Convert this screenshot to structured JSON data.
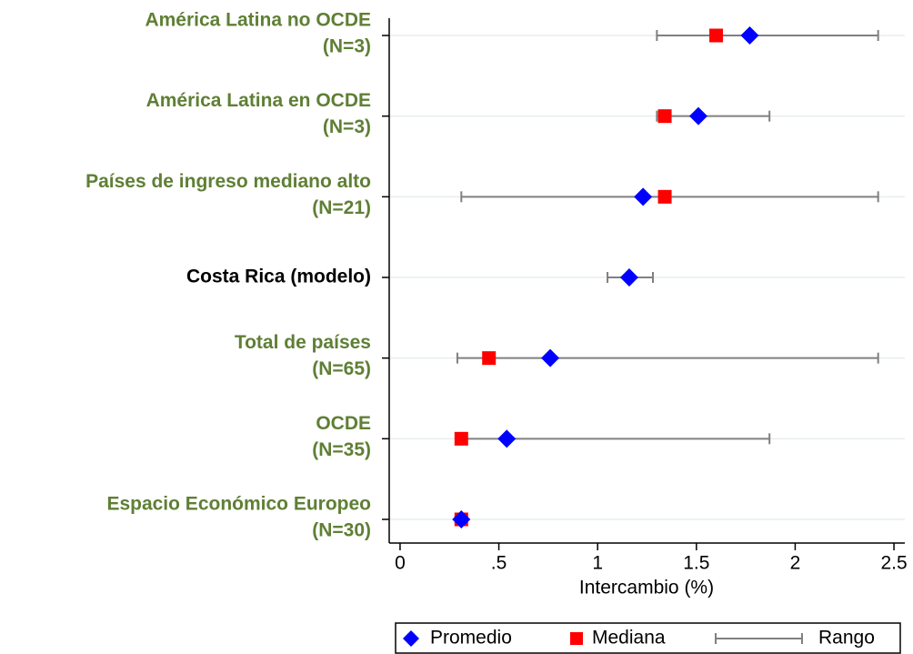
{
  "chart_data": {
    "type": "dot-range",
    "categories": [
      [
        "América Latina no OCDE",
        "(N=3)"
      ],
      [
        "América Latina en OCDE",
        "(N=3)"
      ],
      [
        "Países de ingreso mediano alto",
        "(N=21)"
      ],
      [
        "Costa Rica (modelo)"
      ],
      [
        "Total de países",
        "(N=65)"
      ],
      [
        "OCDE",
        "(N=35)"
      ],
      [
        "Espacio Económico Europeo",
        "(N=30)"
      ]
    ],
    "category_colors": [
      "#5f7f35",
      "#5f7f35",
      "#5f7f35",
      "#000000",
      "#5f7f35",
      "#5f7f35",
      "#5f7f35"
    ],
    "series": [
      {
        "name": "Promedio",
        "color": "#0000ff",
        "values": [
          1.77,
          1.51,
          1.23,
          1.16,
          0.76,
          0.54,
          0.31
        ]
      },
      {
        "name": "Mediana",
        "color": "#ff0000",
        "values": [
          1.6,
          1.34,
          1.34,
          null,
          0.45,
          0.31,
          0.31
        ]
      },
      {
        "name": "Rango",
        "color": "#808080",
        "low": [
          1.3,
          1.3,
          0.31,
          1.05,
          0.29,
          0.31,
          0.31
        ],
        "high": [
          2.42,
          1.87,
          2.42,
          1.28,
          2.42,
          1.87,
          0.31
        ]
      }
    ],
    "xlabel": "Intercambio (%)",
    "xlim": [
      -0.055,
      2.555
    ],
    "xticks": [
      0,
      {
        "value": 0.5,
        "label": ".5"
      },
      1,
      1.5,
      2,
      2.5
    ],
    "grid": true
  }
}
